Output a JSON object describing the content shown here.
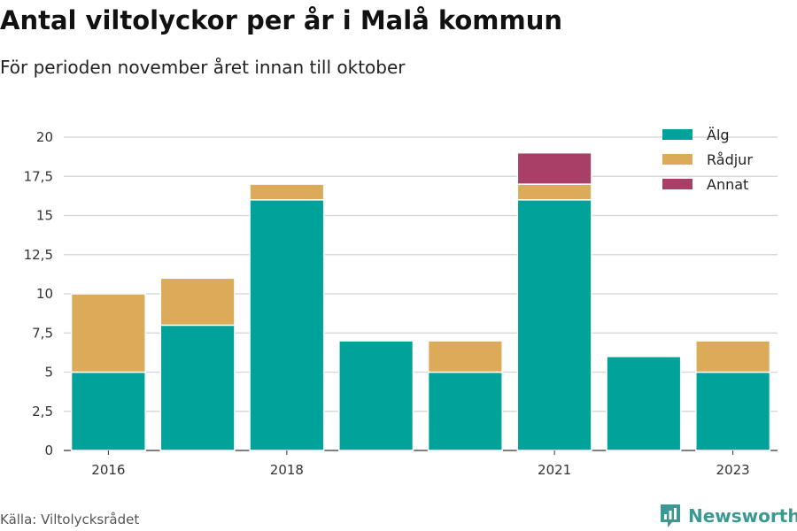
{
  "title": "Antal viltolyckor per år i Malå kommun",
  "subtitle": "För perioden november året innan till oktober",
  "source": "Källa: Viltolycksrådet",
  "brand": {
    "name": "Newsworthy",
    "icon": "newsworthy-logo-icon",
    "color": "#3a9a91"
  },
  "chart_data": {
    "type": "bar",
    "stacked": true,
    "title": "Antal viltolyckor per år i Malå kommun",
    "subtitle": "För perioden november året innan till oktober",
    "categories": [
      "2016",
      "2017",
      "2018",
      "2019",
      "2020",
      "2021",
      "2022",
      "2023"
    ],
    "x_tick_labels": [
      "2016",
      "",
      "2018",
      "",
      "",
      "2021",
      "",
      "2023"
    ],
    "series": [
      {
        "name": "Älg",
        "color": "#00a29a",
        "values": [
          5,
          8,
          16,
          7,
          5,
          16,
          6,
          5
        ]
      },
      {
        "name": "Rådjur",
        "color": "#dbab5a",
        "values": [
          5,
          3,
          1,
          0,
          2,
          1,
          0,
          2
        ]
      },
      {
        "name": "Annat",
        "color": "#a83f66",
        "values": [
          0,
          0,
          0,
          0,
          0,
          2,
          0,
          0
        ]
      }
    ],
    "ylim": [
      0,
      20
    ],
    "y_ticks": [
      0,
      2.5,
      5,
      7.5,
      10,
      12.5,
      15,
      17.5,
      20
    ],
    "y_tick_labels": [
      "0",
      "2,5",
      "5",
      "7,5",
      "10",
      "12,5",
      "15",
      "17,5",
      "20"
    ],
    "xlabel": "",
    "ylabel": "",
    "grid": true,
    "legend_position": "top-right"
  }
}
